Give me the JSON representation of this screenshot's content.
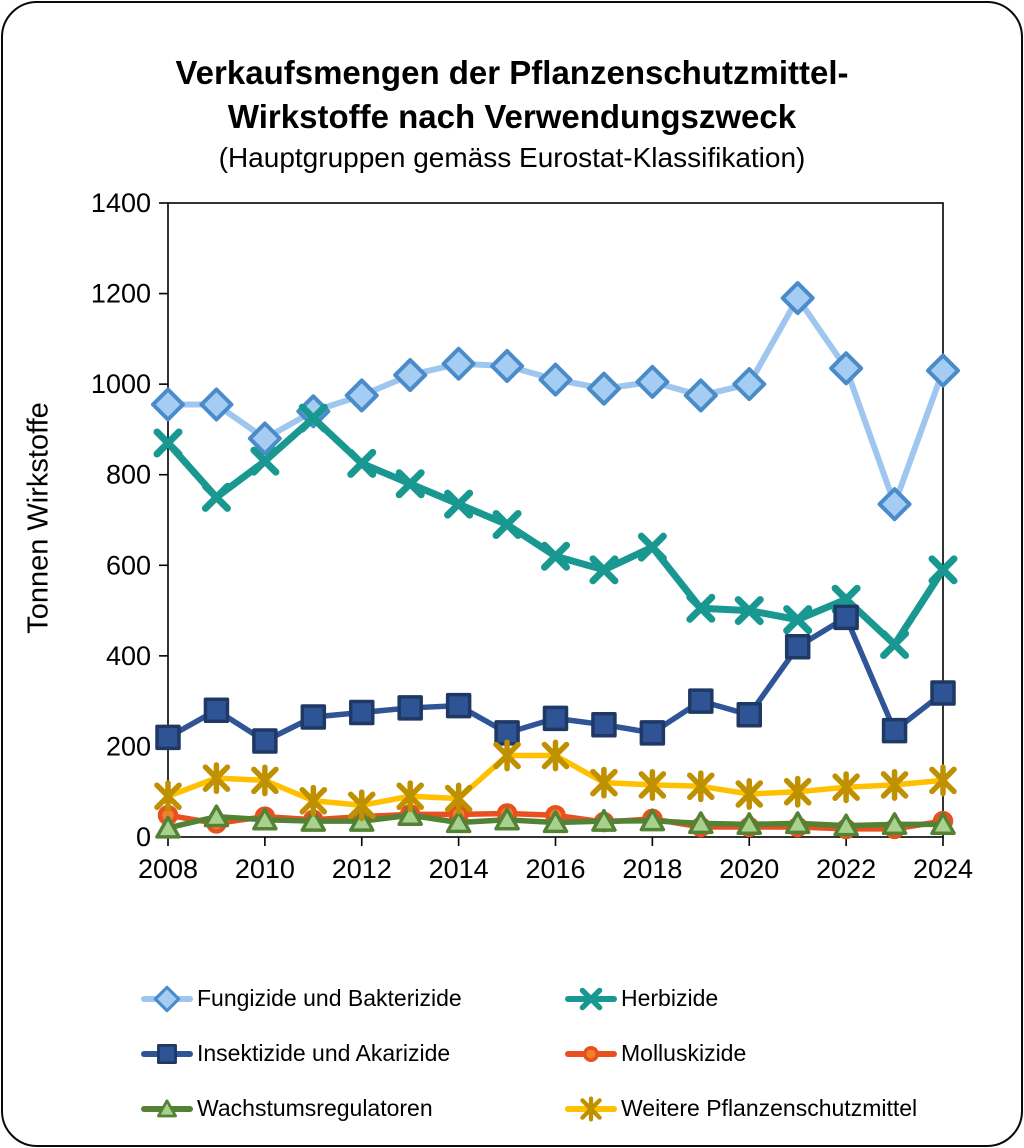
{
  "title": {
    "line1": "Verkaufsmengen der Pflanzenschutzmittel-",
    "line2": "Wirkstoffe nach Verwendungszweck",
    "subtitle": "(Hauptgruppen gemäss Eurostat-Klassifikation)"
  },
  "chart_data": {
    "type": "line",
    "x": [
      2008,
      2009,
      2010,
      2011,
      2012,
      2013,
      2014,
      2015,
      2016,
      2017,
      2018,
      2019,
      2020,
      2021,
      2022,
      2023,
      2024
    ],
    "xtick_labels": [
      "2008",
      "2010",
      "2012",
      "2014",
      "2016",
      "2018",
      "2020",
      "2022",
      "2024"
    ],
    "ylabel": "Tonnen Wirkstoffe",
    "ylim": [
      0,
      1400
    ],
    "ytick_step": 200,
    "grid": false,
    "legend_position": "bottom",
    "axis_color": "#000000",
    "series": [
      {
        "name": "Fungizide und Bakterizide",
        "marker": "diamond",
        "line_color": "#9EC6EE",
        "marker_fill": "#A5CDF3",
        "marker_stroke": "#4A8BC9",
        "values": [
          955,
          955,
          880,
          940,
          975,
          1020,
          1045,
          1040,
          1010,
          990,
          1005,
          975,
          1000,
          1190,
          1035,
          735,
          1030
        ]
      },
      {
        "name": "Herbizide",
        "marker": "x",
        "line_color": "#189890",
        "marker_fill": "#189890",
        "marker_stroke": "#189890",
        "values": [
          870,
          750,
          830,
          925,
          825,
          780,
          735,
          690,
          620,
          590,
          640,
          505,
          500,
          480,
          525,
          425,
          590
        ]
      },
      {
        "name": "Insektizide und Akarizide",
        "marker": "square",
        "line_color": "#2F5597",
        "marker_fill": "#2F5496",
        "marker_stroke": "#1F3864",
        "values": [
          220,
          280,
          212,
          265,
          275,
          285,
          290,
          230,
          262,
          248,
          230,
          300,
          270,
          420,
          485,
          235,
          318
        ]
      },
      {
        "name": "Molluskizide",
        "marker": "circle",
        "line_color": "#E8511F",
        "marker_fill": "#F0812A",
        "marker_stroke": "#E8511F",
        "values": [
          48,
          30,
          45,
          38,
          45,
          50,
          50,
          52,
          48,
          33,
          40,
          22,
          22,
          22,
          18,
          18,
          35
        ]
      },
      {
        "name": "Wachstumsregulatoren",
        "marker": "triangle",
        "line_color": "#548235",
        "marker_fill": "#A9D18E",
        "marker_stroke": "#548235",
        "values": [
          20,
          45,
          38,
          35,
          35,
          48,
          32,
          38,
          32,
          35,
          36,
          30,
          28,
          30,
          25,
          28,
          28
        ]
      },
      {
        "name": "Weitere Pflanzenschutzmittel",
        "marker": "asterisk",
        "line_color": "#FFC000",
        "marker_fill": "#BF9000",
        "marker_stroke": "#BF9000",
        "values": [
          90,
          130,
          125,
          80,
          70,
          90,
          85,
          180,
          180,
          120,
          115,
          112,
          95,
          100,
          110,
          115,
          125
        ]
      }
    ]
  }
}
